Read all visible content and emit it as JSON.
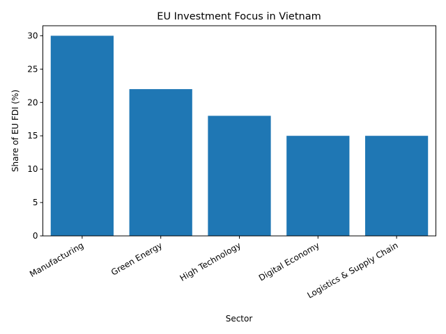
{
  "chart_data": {
    "type": "bar",
    "title": "EU Investment Focus in Vietnam",
    "xlabel": "Sector",
    "ylabel": "Share of EU FDI (%)",
    "categories": [
      "Manufacturing",
      "Green Energy",
      "High Technology",
      "Digital Economy",
      "Logistics & Supply Chain"
    ],
    "values": [
      30,
      22,
      18,
      15,
      15
    ],
    "ylim": [
      0,
      31.5
    ],
    "yticks": [
      0,
      5,
      10,
      15,
      20,
      25,
      30
    ],
    "grid": false,
    "bar_color": "#1f77b4"
  }
}
